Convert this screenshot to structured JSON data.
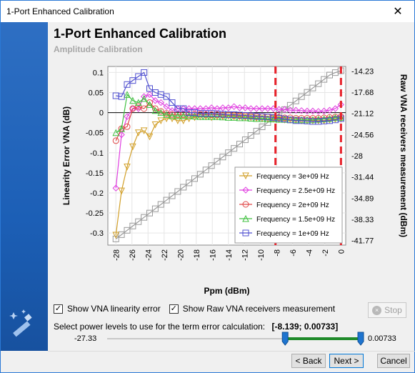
{
  "window": {
    "title": "1-Port Enhanced Calibration",
    "close_glyph": "✕"
  },
  "header": {
    "title": "1-Port Enhanced Calibration",
    "subtitle": "Amplitude Calibration"
  },
  "chart_data": {
    "type": "line",
    "xlabel": "Ppm (dBm)",
    "ylabel": "Linearity Error VNA (dB)",
    "y2label": "Raw VNA receivers measurement (dBm)",
    "xlim": [
      -29,
      0.6
    ],
    "ylim": [
      -0.33,
      0.115
    ],
    "y2lim": [
      -42.5,
      -13.5
    ],
    "x_ticks": [
      -28,
      -26,
      -24,
      -22,
      -20,
      -18,
      -16,
      -14,
      -12,
      -10,
      -8,
      -6,
      -4,
      -2,
      0
    ],
    "y_ticks": [
      0.1,
      0.05,
      0,
      -0.05,
      -0.1,
      -0.15,
      -0.2,
      -0.25,
      -0.3
    ],
    "y2_ticks": [
      -14.23,
      -17.68,
      -21.12,
      -24.56,
      -28,
      -31.44,
      -34.89,
      -38.33,
      -41.77
    ],
    "grid": true,
    "legend_position": "bottom-right",
    "markers_x": [
      -8.139,
      0.00733
    ],
    "x": [
      -28,
      -27.3,
      -26.6,
      -25.9,
      -25.2,
      -24.5,
      -23.8,
      -23.1,
      -22.4,
      -21.7,
      -21,
      -20.3,
      -19.6,
      -18.9,
      -18.2,
      -17.5,
      -16.8,
      -16.1,
      -15.4,
      -14.7,
      -14,
      -13.3,
      -12.6,
      -11.9,
      -11.2,
      -10.5,
      -9.8,
      -9.1,
      -8.4,
      -7.7,
      -7,
      -6.3,
      -5.6,
      -4.9,
      -4.2,
      -3.5,
      -2.8,
      -2.1,
      -1.4,
      -0.7,
      0
    ],
    "series": [
      {
        "name": "Frequency = 3e+09 Hz",
        "color": "#d2a02a",
        "marker": "triangle-down",
        "axis": "left",
        "values": [
          -0.305,
          -0.195,
          -0.135,
          -0.085,
          -0.05,
          -0.045,
          -0.06,
          -0.03,
          -0.02,
          -0.015,
          -0.015,
          -0.02,
          -0.02,
          -0.015,
          -0.012,
          -0.01,
          -0.01,
          -0.012,
          -0.01,
          -0.01,
          -0.008,
          -0.01,
          -0.01,
          -0.012,
          -0.012,
          -0.014,
          -0.015,
          -0.016,
          -0.016,
          -0.017,
          -0.018,
          -0.018,
          -0.019,
          -0.02,
          -0.02,
          -0.02,
          -0.02,
          -0.02,
          -0.018,
          -0.016,
          -0.015
        ]
      },
      {
        "name": "Frequency = 2.5e+09 Hz",
        "color": "#e040e0",
        "marker": "diamond",
        "axis": "left",
        "values": [
          -0.188,
          -0.055,
          -0.01,
          0.01,
          0.01,
          0.04,
          0.045,
          0.03,
          0.025,
          0.015,
          0.005,
          0.01,
          0.01,
          0.01,
          0.01,
          0.01,
          0.01,
          0.012,
          0.01,
          0.012,
          0.012,
          0.015,
          0.012,
          0.012,
          0.01,
          0.01,
          0.01,
          0.01,
          0.01,
          0.008,
          0.008,
          0.006,
          0.006,
          0.005,
          0.004,
          0.004,
          0.003,
          0.004,
          0.006,
          0.01,
          0.02
        ]
      },
      {
        "name": "Frequency = 2e+09 Hz",
        "color": "#e04848",
        "marker": "circle",
        "axis": "left",
        "values": [
          -0.07,
          -0.04,
          -0.035,
          0.01,
          0.015,
          0.01,
          0.025,
          0.01,
          0.003,
          -0.002,
          -0.005,
          -0.005,
          -0.005,
          -0.005,
          -0.004,
          -0.004,
          -0.005,
          -0.005,
          -0.005,
          -0.006,
          -0.006,
          -0.007,
          -0.008,
          -0.008,
          -0.009,
          -0.01,
          -0.01,
          -0.011,
          -0.012,
          -0.012,
          -0.013,
          -0.013,
          -0.014,
          -0.014,
          -0.014,
          -0.014,
          -0.014,
          -0.013,
          -0.012,
          -0.011,
          -0.01
        ]
      },
      {
        "name": "Frequency = 1.5e+09 Hz",
        "color": "#40c040",
        "marker": "triangle-up",
        "axis": "left",
        "values": [
          -0.05,
          -0.04,
          0.045,
          0.03,
          0.025,
          0.035,
          0.02,
          0.005,
          0.0,
          -0.005,
          -0.008,
          -0.008,
          -0.008,
          -0.008,
          -0.009,
          -0.01,
          -0.01,
          -0.01,
          -0.01,
          -0.011,
          -0.012,
          -0.012,
          -0.013,
          -0.013,
          -0.014,
          -0.015,
          -0.015,
          -0.016,
          -0.016,
          -0.017,
          -0.017,
          -0.018,
          -0.018,
          -0.018,
          -0.018,
          -0.018,
          -0.017,
          -0.016,
          -0.015,
          -0.013,
          -0.012
        ]
      },
      {
        "name": "Frequency = 1e+09 Hz",
        "color": "#5050d0",
        "marker": "square",
        "axis": "left",
        "values": [
          0.042,
          0.04,
          0.07,
          0.08,
          0.09,
          0.1,
          0.06,
          0.05,
          0.045,
          0.04,
          0.025,
          0.01,
          0.01,
          0.0,
          0.0,
          -0.002,
          -0.002,
          -0.002,
          -0.003,
          -0.004,
          -0.005,
          -0.005,
          -0.006,
          -0.007,
          -0.008,
          -0.009,
          -0.01,
          -0.011,
          -0.012,
          -0.014,
          -0.016,
          -0.018,
          -0.02,
          -0.02,
          -0.021,
          -0.022,
          -0.022,
          -0.021,
          -0.02,
          -0.018,
          -0.015
        ]
      },
      {
        "name": "",
        "color": "#999999",
        "marker": "square",
        "axis": "right",
        "values": [
          -41.5,
          -40.8,
          -40.1,
          -39.4,
          -38.7,
          -38.0,
          -37.3,
          -36.6,
          -35.9,
          -35.2,
          -34.5,
          -33.8,
          -33.1,
          -32.4,
          -31.7,
          -31.0,
          -30.3,
          -29.6,
          -28.9,
          -28.2,
          -27.5,
          -26.8,
          -26.1,
          -25.4,
          -24.7,
          -24.0,
          -23.3,
          -22.6,
          -21.9,
          -21.2,
          -20.5,
          -19.8,
          -19.1,
          -18.4,
          -17.7,
          -17.0,
          -16.3,
          -15.6,
          -14.9,
          -14.5,
          -14.2
        ]
      }
    ]
  },
  "options": {
    "show_linearity_label": "Show VNA linearity error",
    "show_raw_label": "Show Raw VNA receivers measurement",
    "show_linearity_checked": true,
    "show_raw_checked": true,
    "check_glyph": "✓"
  },
  "stop_button": {
    "label": "Stop",
    "icon": "×"
  },
  "power_select": {
    "label": "Select power levels to use for the term error calculation:",
    "range_text": "[-8.139; 0.00733]",
    "min_label": "-27.33",
    "max_label": "0.00733",
    "min_value": -27.33,
    "max_value": 0.00733,
    "low_value": -8.139,
    "high_value": 0.00733
  },
  "footer": {
    "back_label": "< Back",
    "next_label": "Next >",
    "cancel_label": "Cancel"
  }
}
